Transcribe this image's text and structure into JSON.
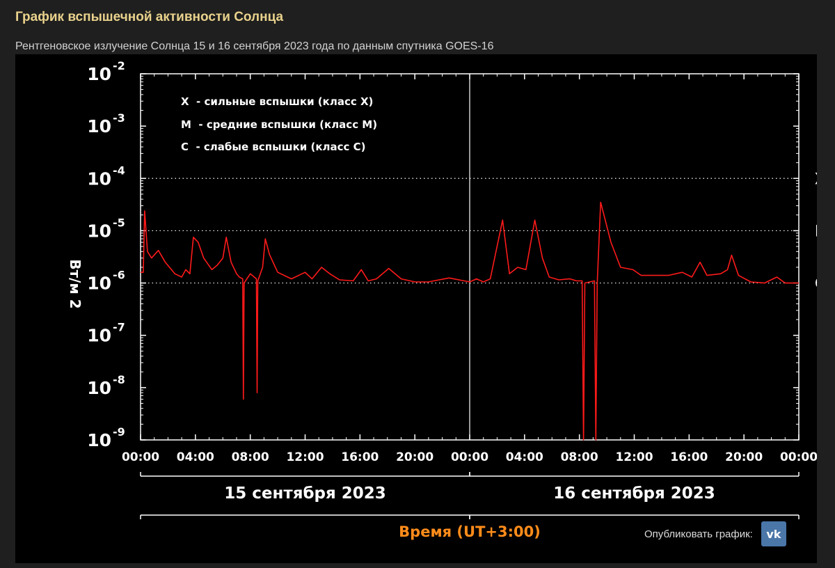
{
  "header": {
    "title": "График вспышечной активности Солнца",
    "subtitle": "Рентгеновское излучение Солнца 15 и 16 сентября 2023 года по данным спутника GOES-16"
  },
  "legend": [
    "X  - сильные вспышки (класс X)",
    "M  - средние вспышки (класс M)",
    "C  - слабые вспышки (класс C)"
  ],
  "share": {
    "label": "Опубликовать график:",
    "icon": "vk-logo-icon",
    "button_text": "vk"
  },
  "colors": {
    "series": "#ff1a1a",
    "xlabel": "#ff8c1a",
    "title": "#e9d28c"
  },
  "chart_data": {
    "type": "line",
    "title": "",
    "ylabel": "Вт/м 2",
    "xlabel": "Время (UT+3:00)",
    "y_scale": "log",
    "ylim": [
      1e-09,
      0.01
    ],
    "y_ticks": [
      {
        "base": "10",
        "exp": "-2",
        "value": 0.01
      },
      {
        "base": "10",
        "exp": "-3",
        "value": 0.001
      },
      {
        "base": "10",
        "exp": "-4",
        "value": 0.0001
      },
      {
        "base": "10",
        "exp": "-5",
        "value": 1e-05
      },
      {
        "base": "10",
        "exp": "-6",
        "value": 1e-06
      },
      {
        "base": "10",
        "exp": "-7",
        "value": 1e-07
      },
      {
        "base": "10",
        "exp": "-8",
        "value": 1e-08
      },
      {
        "base": "10",
        "exp": "-9",
        "value": 1e-09
      }
    ],
    "x_range_hours": [
      0,
      48
    ],
    "x_ticks": [
      {
        "label": "00:00",
        "hour": 0
      },
      {
        "label": "04:00",
        "hour": 4
      },
      {
        "label": "08:00",
        "hour": 8
      },
      {
        "label": "12:00",
        "hour": 12
      },
      {
        "label": "16:00",
        "hour": 16
      },
      {
        "label": "20:00",
        "hour": 20
      },
      {
        "label": "00:00",
        "hour": 24
      },
      {
        "label": "04:00",
        "hour": 28
      },
      {
        "label": "08:00",
        "hour": 32
      },
      {
        "label": "12:00",
        "hour": 36
      },
      {
        "label": "16:00",
        "hour": 40
      },
      {
        "label": "20:00",
        "hour": 44
      },
      {
        "label": "00:00",
        "hour": 48
      }
    ],
    "day_labels": [
      {
        "label": "15 сентября 2023",
        "start_hour": 0,
        "end_hour": 24
      },
      {
        "label": "16 сентября 2023",
        "start_hour": 24,
        "end_hour": 48
      }
    ],
    "class_levels": [
      {
        "label": "X",
        "value": 0.0001
      },
      {
        "label": "M",
        "value": 1e-05
      },
      {
        "label": "C",
        "value": 1e-06
      }
    ],
    "grid": "dotted at class levels",
    "series": [
      {
        "values": [
          [
            0,
            1.6e-06
          ],
          [
            0.2,
            1.6e-06
          ],
          [
            0.3,
            2.4e-05
          ],
          [
            0.5,
            4e-06
          ],
          [
            0.8,
            3e-06
          ],
          [
            1.3,
            4.2e-06
          ],
          [
            1.8,
            2.5e-06
          ],
          [
            2.5,
            1.5e-06
          ],
          [
            3.0,
            1.3e-06
          ],
          [
            3.3,
            1.8e-06
          ],
          [
            3.6,
            1.5e-06
          ],
          [
            3.85,
            7.5e-06
          ],
          [
            4.2,
            6e-06
          ],
          [
            4.6,
            3e-06
          ],
          [
            5.2,
            1.8e-06
          ],
          [
            5.6,
            2.2e-06
          ],
          [
            6.0,
            3e-06
          ],
          [
            6.25,
            7.5e-06
          ],
          [
            6.6,
            2.5e-06
          ],
          [
            7.0,
            1.5e-06
          ],
          [
            7.2,
            1.3e-06
          ],
          [
            7.45,
            1.2e-06
          ],
          [
            7.5,
            6e-09
          ],
          [
            7.55,
            1e-06
          ],
          [
            8.0,
            1.5e-06
          ],
          [
            8.45,
            1.2e-06
          ],
          [
            8.5,
            8e-09
          ],
          [
            8.55,
            1.1e-06
          ],
          [
            8.9,
            2e-06
          ],
          [
            9.1,
            7e-06
          ],
          [
            9.4,
            3.5e-06
          ],
          [
            10,
            1.6e-06
          ],
          [
            11,
            1.2e-06
          ],
          [
            12.0,
            1.6e-06
          ],
          [
            12.5,
            1.2e-06
          ],
          [
            13.2,
            2e-06
          ],
          [
            13.8,
            1.5e-06
          ],
          [
            14.5,
            1.15e-06
          ],
          [
            15.5,
            1.1e-06
          ],
          [
            16.1,
            1.8e-06
          ],
          [
            16.6,
            1.1e-06
          ],
          [
            17.2,
            1.2e-06
          ],
          [
            18.1,
            1.9e-06
          ],
          [
            19,
            1.2e-06
          ],
          [
            20,
            1.05e-06
          ],
          [
            21,
            1.05e-06
          ],
          [
            22.5,
            1.25e-06
          ],
          [
            24,
            1.05e-06
          ],
          [
            24.5,
            1.2e-06
          ],
          [
            25,
            1.05e-06
          ],
          [
            25.5,
            1.2e-06
          ],
          [
            26.4,
            1.6e-05
          ],
          [
            26.9,
            1.5e-06
          ],
          [
            27.5,
            2e-06
          ],
          [
            28.1,
            1.8e-06
          ],
          [
            28.75,
            1.6e-05
          ],
          [
            29.3,
            3e-06
          ],
          [
            29.8,
            1.3e-06
          ],
          [
            30.5,
            1.15e-06
          ],
          [
            31.3,
            1.2e-06
          ],
          [
            31.8,
            1.1e-06
          ],
          [
            32.2,
            1.1e-06
          ],
          [
            32.3,
            1e-09
          ],
          [
            32.4,
            1e-06
          ],
          [
            33.1,
            1.1e-06
          ],
          [
            33.2,
            1e-09
          ],
          [
            33.3,
            1e-06
          ],
          [
            33.55,
            3.5e-05
          ],
          [
            34.3,
            6e-06
          ],
          [
            35,
            2e-06
          ],
          [
            35.9,
            1.8e-06
          ],
          [
            36.5,
            1.4e-06
          ],
          [
            38.5,
            1.4e-06
          ],
          [
            39.5,
            1.6e-06
          ],
          [
            40.2,
            1.3e-06
          ],
          [
            40.8,
            2.5e-06
          ],
          [
            41.3,
            1.4e-06
          ],
          [
            42.3,
            1.5e-06
          ],
          [
            42.8,
            1.8e-06
          ],
          [
            43.1,
            3.4e-06
          ],
          [
            43.6,
            1.4e-06
          ],
          [
            44.5,
            1.05e-06
          ],
          [
            45.5,
            1e-06
          ],
          [
            46.4,
            1.3e-06
          ],
          [
            47,
            1e-06
          ],
          [
            48,
            1e-06
          ]
        ]
      }
    ]
  }
}
